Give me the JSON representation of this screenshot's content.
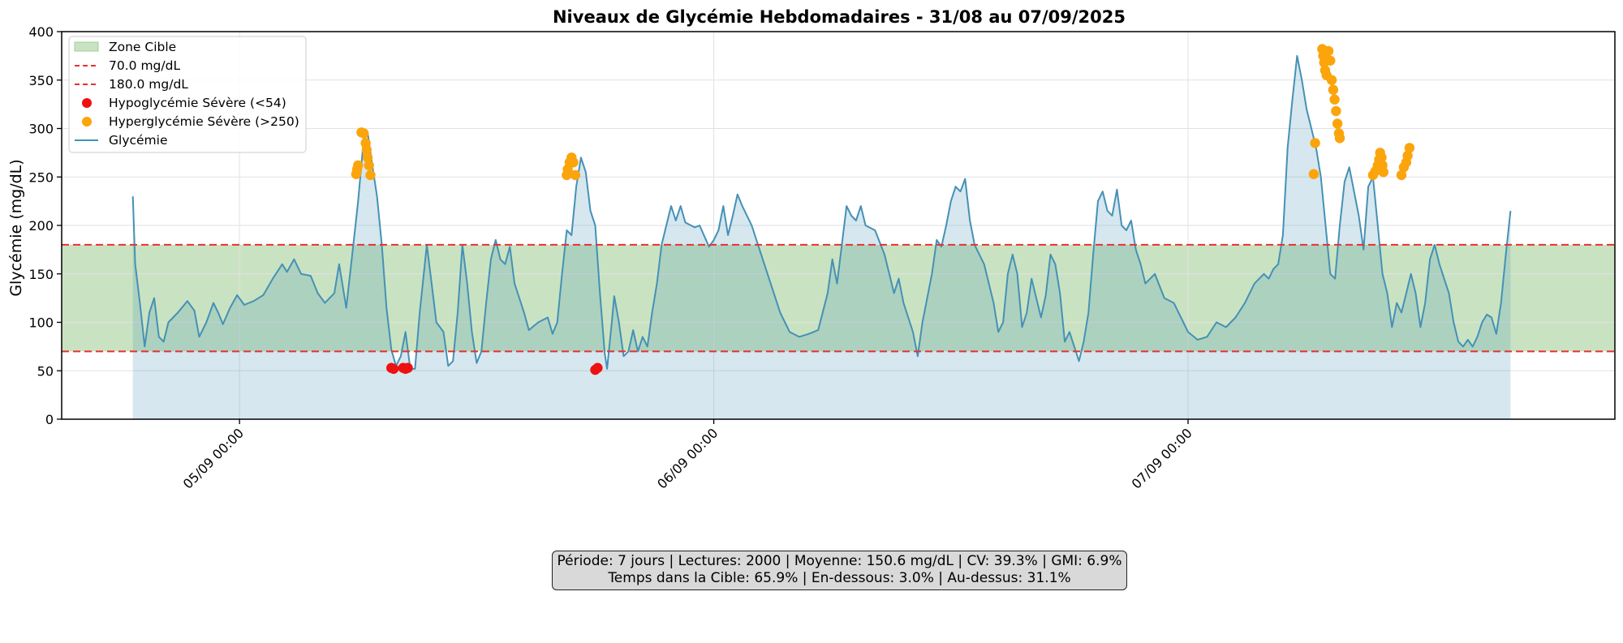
{
  "chart_data": {
    "type": "area",
    "title": "Niveaux de Glycémie Hebdomadaires - 31/08 au 07/09/2025",
    "xlabel": "",
    "ylabel": "Glycémie (mg/dL)",
    "ylim": [
      0,
      400
    ],
    "yticks": [
      0,
      50,
      100,
      150,
      200,
      250,
      300,
      350,
      400
    ],
    "xlim_days": [
      -0.375,
      2.9
    ],
    "xticks": [
      {
        "label": "05/09 00:00",
        "day": 0
      },
      {
        "label": "06/09 00:00",
        "day": 1
      },
      {
        "label": "07/09 00:00",
        "day": 2
      }
    ],
    "grid": true,
    "legend_position": "top-left",
    "target_zone": {
      "label": "Zone Cible",
      "low": 70.0,
      "high": 180.0,
      "color": "#c9e3c2"
    },
    "threshold_lines": [
      {
        "label": "70.0 mg/dL",
        "value": 70.0,
        "color": "#e8312f"
      },
      {
        "label": "180.0 mg/dL",
        "value": 180.0,
        "color": "#e8312f"
      }
    ],
    "series": [
      {
        "name": "Glycémie",
        "color": "#4591b5",
        "points": [
          [
            -0.225,
            230
          ],
          [
            -0.22,
            160
          ],
          [
            -0.21,
            120
          ],
          [
            -0.2,
            75
          ],
          [
            -0.19,
            110
          ],
          [
            -0.18,
            125
          ],
          [
            -0.17,
            85
          ],
          [
            -0.16,
            80
          ],
          [
            -0.15,
            100
          ],
          [
            -0.13,
            110
          ],
          [
            -0.11,
            122
          ],
          [
            -0.095,
            112
          ],
          [
            -0.085,
            85
          ],
          [
            -0.07,
            100
          ],
          [
            -0.055,
            120
          ],
          [
            -0.045,
            110
          ],
          [
            -0.035,
            98
          ],
          [
            -0.02,
            115
          ],
          [
            -0.005,
            128
          ],
          [
            0.01,
            118
          ],
          [
            0.03,
            122
          ],
          [
            0.05,
            128
          ],
          [
            0.07,
            145
          ],
          [
            0.09,
            160
          ],
          [
            0.1,
            152
          ],
          [
            0.115,
            165
          ],
          [
            0.13,
            150
          ],
          [
            0.15,
            148
          ],
          [
            0.165,
            130
          ],
          [
            0.18,
            120
          ],
          [
            0.2,
            130
          ],
          [
            0.21,
            160
          ],
          [
            0.225,
            115
          ],
          [
            0.24,
            180
          ],
          [
            0.25,
            225
          ],
          [
            0.262,
            290
          ],
          [
            0.27,
            296
          ],
          [
            0.28,
            262
          ],
          [
            0.29,
            230
          ],
          [
            0.3,
            180
          ],
          [
            0.31,
            115
          ],
          [
            0.32,
            72
          ],
          [
            0.33,
            55
          ],
          [
            0.34,
            65
          ],
          [
            0.35,
            90
          ],
          [
            0.36,
            52
          ],
          [
            0.37,
            52
          ],
          [
            0.38,
            110
          ],
          [
            0.395,
            180
          ],
          [
            0.405,
            140
          ],
          [
            0.415,
            100
          ],
          [
            0.43,
            90
          ],
          [
            0.44,
            55
          ],
          [
            0.45,
            60
          ],
          [
            0.46,
            110
          ],
          [
            0.47,
            180
          ],
          [
            0.48,
            140
          ],
          [
            0.49,
            90
          ],
          [
            0.5,
            58
          ],
          [
            0.51,
            70
          ],
          [
            0.52,
            120
          ],
          [
            0.53,
            165
          ],
          [
            0.54,
            185
          ],
          [
            0.55,
            165
          ],
          [
            0.56,
            160
          ],
          [
            0.57,
            178
          ],
          [
            0.58,
            140
          ],
          [
            0.6,
            110
          ],
          [
            0.61,
            92
          ],
          [
            0.63,
            100
          ],
          [
            0.65,
            105
          ],
          [
            0.66,
            88
          ],
          [
            0.67,
            100
          ],
          [
            0.68,
            150
          ],
          [
            0.69,
            195
          ],
          [
            0.7,
            190
          ],
          [
            0.71,
            240
          ],
          [
            0.72,
            270
          ],
          [
            0.73,
            255
          ],
          [
            0.74,
            215
          ],
          [
            0.75,
            200
          ],
          [
            0.76,
            130
          ],
          [
            0.77,
            68
          ],
          [
            0.775,
            52
          ],
          [
            0.785,
            100
          ],
          [
            0.79,
            127
          ],
          [
            0.8,
            100
          ],
          [
            0.81,
            65
          ],
          [
            0.82,
            70
          ],
          [
            0.83,
            92
          ],
          [
            0.84,
            70
          ],
          [
            0.85,
            85
          ],
          [
            0.86,
            75
          ],
          [
            0.87,
            110
          ],
          [
            0.88,
            140
          ],
          [
            0.89,
            180
          ],
          [
            0.9,
            200
          ],
          [
            0.91,
            220
          ],
          [
            0.92,
            205
          ],
          [
            0.93,
            220
          ],
          [
            0.94,
            203
          ],
          [
            0.96,
            198
          ],
          [
            0.97,
            200
          ],
          [
            0.99,
            178
          ],
          [
            1.0,
            185
          ],
          [
            1.01,
            195
          ],
          [
            1.02,
            220
          ],
          [
            1.03,
            190
          ],
          [
            1.04,
            210
          ],
          [
            1.05,
            232
          ],
          [
            1.06,
            220
          ],
          [
            1.08,
            200
          ],
          [
            1.1,
            170
          ],
          [
            1.12,
            140
          ],
          [
            1.14,
            110
          ],
          [
            1.16,
            90
          ],
          [
            1.18,
            85
          ],
          [
            1.2,
            88
          ],
          [
            1.22,
            92
          ],
          [
            1.24,
            130
          ],
          [
            1.25,
            165
          ],
          [
            1.26,
            140
          ],
          [
            1.27,
            180
          ],
          [
            1.28,
            220
          ],
          [
            1.29,
            210
          ],
          [
            1.3,
            205
          ],
          [
            1.31,
            220
          ],
          [
            1.32,
            200
          ],
          [
            1.34,
            195
          ],
          [
            1.36,
            170
          ],
          [
            1.38,
            130
          ],
          [
            1.39,
            145
          ],
          [
            1.4,
            120
          ],
          [
            1.41,
            105
          ],
          [
            1.42,
            90
          ],
          [
            1.43,
            65
          ],
          [
            1.44,
            100
          ],
          [
            1.46,
            150
          ],
          [
            1.47,
            185
          ],
          [
            1.48,
            178
          ],
          [
            1.49,
            200
          ],
          [
            1.5,
            225
          ],
          [
            1.51,
            240
          ],
          [
            1.52,
            235
          ],
          [
            1.53,
            248
          ],
          [
            1.54,
            205
          ],
          [
            1.55,
            180
          ],
          [
            1.57,
            160
          ],
          [
            1.59,
            120
          ],
          [
            1.6,
            90
          ],
          [
            1.61,
            100
          ],
          [
            1.62,
            150
          ],
          [
            1.63,
            170
          ],
          [
            1.64,
            150
          ],
          [
            1.65,
            95
          ],
          [
            1.66,
            110
          ],
          [
            1.67,
            145
          ],
          [
            1.68,
            125
          ],
          [
            1.69,
            105
          ],
          [
            1.7,
            128
          ],
          [
            1.71,
            170
          ],
          [
            1.72,
            160
          ],
          [
            1.73,
            130
          ],
          [
            1.74,
            80
          ],
          [
            1.75,
            90
          ],
          [
            1.76,
            75
          ],
          [
            1.77,
            60
          ],
          [
            1.78,
            80
          ],
          [
            1.79,
            110
          ],
          [
            1.8,
            170
          ],
          [
            1.81,
            225
          ],
          [
            1.82,
            235
          ],
          [
            1.83,
            215
          ],
          [
            1.84,
            210
          ],
          [
            1.85,
            237
          ],
          [
            1.86,
            200
          ],
          [
            1.87,
            195
          ],
          [
            1.88,
            205
          ],
          [
            1.89,
            175
          ],
          [
            1.9,
            160
          ],
          [
            1.91,
            140
          ],
          [
            1.93,
            150
          ],
          [
            1.95,
            125
          ],
          [
            1.97,
            120
          ],
          [
            1.99,
            100
          ],
          [
            2.0,
            90
          ],
          [
            2.02,
            82
          ],
          [
            2.04,
            85
          ],
          [
            2.06,
            100
          ],
          [
            2.08,
            95
          ],
          [
            2.1,
            105
          ],
          [
            2.12,
            120
          ],
          [
            2.14,
            140
          ],
          [
            2.16,
            150
          ],
          [
            2.17,
            145
          ],
          [
            2.18,
            155
          ],
          [
            2.19,
            160
          ],
          [
            2.2,
            190
          ],
          [
            2.21,
            280
          ],
          [
            2.22,
            330
          ],
          [
            2.23,
            375
          ],
          [
            2.24,
            350
          ],
          [
            2.25,
            320
          ],
          [
            2.26,
            300
          ],
          [
            2.27,
            280
          ],
          [
            2.28,
            250
          ],
          [
            2.29,
            200
          ],
          [
            2.3,
            150
          ],
          [
            2.31,
            145
          ],
          [
            2.32,
            200
          ],
          [
            2.33,
            245
          ],
          [
            2.34,
            260
          ],
          [
            2.35,
            235
          ],
          [
            2.36,
            210
          ],
          [
            2.37,
            175
          ],
          [
            2.38,
            240
          ],
          [
            2.39,
            250
          ],
          [
            2.4,
            200
          ],
          [
            2.41,
            150
          ],
          [
            2.42,
            130
          ],
          [
            2.43,
            95
          ],
          [
            2.44,
            120
          ],
          [
            2.45,
            110
          ],
          [
            2.46,
            130
          ],
          [
            2.47,
            150
          ],
          [
            2.48,
            130
          ],
          [
            2.49,
            95
          ],
          [
            2.5,
            120
          ],
          [
            2.51,
            165
          ],
          [
            2.52,
            180
          ],
          [
            2.53,
            160
          ],
          [
            2.54,
            145
          ],
          [
            2.55,
            130
          ],
          [
            2.56,
            100
          ],
          [
            2.57,
            80
          ],
          [
            2.58,
            75
          ],
          [
            2.59,
            82
          ],
          [
            2.6,
            75
          ],
          [
            2.61,
            85
          ],
          [
            2.62,
            100
          ],
          [
            2.63,
            108
          ],
          [
            2.64,
            105
          ],
          [
            2.65,
            88
          ],
          [
            2.66,
            120
          ],
          [
            2.67,
            170
          ],
          [
            2.68,
            215
          ]
        ]
      }
    ],
    "markers": [
      {
        "name": "Hypoglycémie Sévère (<54)",
        "color": "#ee1111",
        "points": [
          [
            0.32,
            53
          ],
          [
            0.325,
            52
          ],
          [
            0.345,
            53
          ],
          [
            0.35,
            52
          ],
          [
            0.355,
            53
          ],
          [
            0.75,
            51
          ],
          [
            0.755,
            53
          ]
        ]
      },
      {
        "name": "Hyperglycémie Sévère (>250)",
        "color": "#fba40b",
        "points": [
          [
            0.246,
            253
          ],
          [
            0.248,
            258
          ],
          [
            0.25,
            262
          ],
          [
            0.257,
            296
          ],
          [
            0.262,
            295
          ],
          [
            0.266,
            285
          ],
          [
            0.268,
            278
          ],
          [
            0.27,
            270
          ],
          [
            0.273,
            262
          ],
          [
            0.276,
            252
          ],
          [
            0.69,
            252
          ],
          [
            0.692,
            258
          ],
          [
            0.696,
            265
          ],
          [
            0.7,
            270
          ],
          [
            0.704,
            265
          ],
          [
            0.708,
            252
          ],
          [
            2.265,
            253
          ],
          [
            2.268,
            285
          ],
          [
            2.283,
            382
          ],
          [
            2.285,
            375
          ],
          [
            2.287,
            368
          ],
          [
            2.289,
            360
          ],
          [
            2.292,
            355
          ],
          [
            2.296,
            380
          ],
          [
            2.3,
            370
          ],
          [
            2.303,
            350
          ],
          [
            2.306,
            340
          ],
          [
            2.309,
            330
          ],
          [
            2.312,
            318
          ],
          [
            2.315,
            305
          ],
          [
            2.318,
            295
          ],
          [
            2.32,
            290
          ],
          [
            2.39,
            252
          ],
          [
            2.395,
            256
          ],
          [
            2.4,
            262
          ],
          [
            2.403,
            268
          ],
          [
            2.405,
            275
          ],
          [
            2.408,
            270
          ],
          [
            2.41,
            262
          ],
          [
            2.412,
            255
          ],
          [
            2.45,
            252
          ],
          [
            2.455,
            260
          ],
          [
            2.46,
            265
          ],
          [
            2.463,
            272
          ],
          [
            2.467,
            280
          ]
        ]
      }
    ],
    "stats_text": [
      "Période: 7 jours | Lectures: 2000 | Moyenne: 150.6 mg/dL | CV: 39.3% | GMI: 6.9%",
      "Temps dans la Cible: 65.9% | En-dessous: 3.0% | Au-dessus: 31.1%"
    ]
  }
}
